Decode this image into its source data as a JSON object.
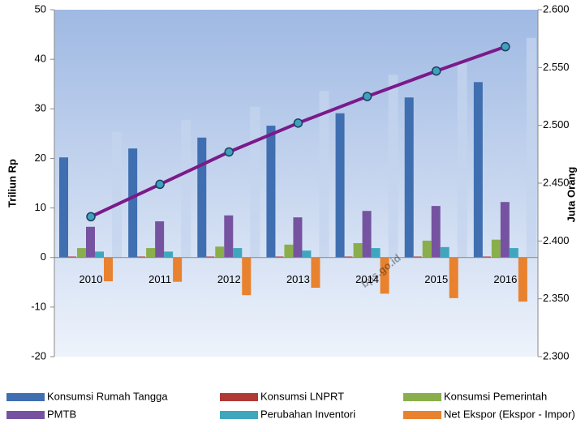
{
  "chart_data": {
    "type": "bar",
    "categories": [
      "2010",
      "2011",
      "2012",
      "2013",
      "2014",
      "2015",
      "2016"
    ],
    "series": [
      {
        "name": "Konsumsi Rumah Tangga",
        "color": "#3f6fb0",
        "values": [
          20.2,
          22.0,
          24.2,
          26.6,
          29.1,
          32.3,
          35.4
        ]
      },
      {
        "name": "Konsumsi LNPRT",
        "color": "#b03a36",
        "values": [
          0.2,
          0.2,
          0.2,
          0.2,
          0.2,
          0.2,
          0.2
        ]
      },
      {
        "name": "Konsumsi Pemerintah",
        "color": "#8aae4b",
        "values": [
          1.9,
          1.9,
          2.2,
          2.6,
          2.9,
          3.4,
          3.6
        ]
      },
      {
        "name": "PMTB",
        "color": "#7653a0",
        "values": [
          6.2,
          7.3,
          8.5,
          8.1,
          9.4,
          10.4,
          11.2
        ]
      },
      {
        "name": "Perubahan Inventori",
        "color": "#3ea7be",
        "values": [
          1.2,
          1.2,
          1.9,
          1.4,
          1.9,
          2.1,
          1.9
        ]
      },
      {
        "name": "Net Ekspor (Ekspor - Impor)",
        "color": "#e8822f",
        "values": [
          -4.8,
          -4.9,
          -7.6,
          -6.1,
          -7.3,
          -8.2,
          -8.9
        ]
      },
      {
        "color": "#c4d4ee",
        "values": [
          25.4,
          27.8,
          30.4,
          33.6,
          36.9,
          39.2,
          44.3
        ]
      },
      {
        "color": "#7b1a8a",
        "axis": "y2",
        "values": [
          2.421,
          2.449,
          2.477,
          2.502,
          2.525,
          2.547,
          2.568
        ]
      }
    ],
    "ylabel": "Triliun Rp",
    "y2label": "Juta Orang",
    "ylim": [
      -20,
      50
    ],
    "yticks": [
      -20,
      -10,
      0,
      10,
      20,
      30,
      40,
      50
    ],
    "y2lim": [
      2.3,
      2.6
    ],
    "y2ticks": [
      {
        "value": 2.3,
        "label": "2.300"
      },
      {
        "value": 2.35,
        "label": "2.350"
      },
      {
        "value": 2.4,
        "label": "2.400"
      },
      {
        "value": 2.45,
        "label": "2.450"
      },
      {
        "value": 2.5,
        "label": "2.500"
      },
      {
        "value": 2.55,
        "label": "2.550"
      },
      {
        "value": 2.6,
        "label": "2.600"
      }
    ],
    "watermark": "bps.go.id"
  }
}
